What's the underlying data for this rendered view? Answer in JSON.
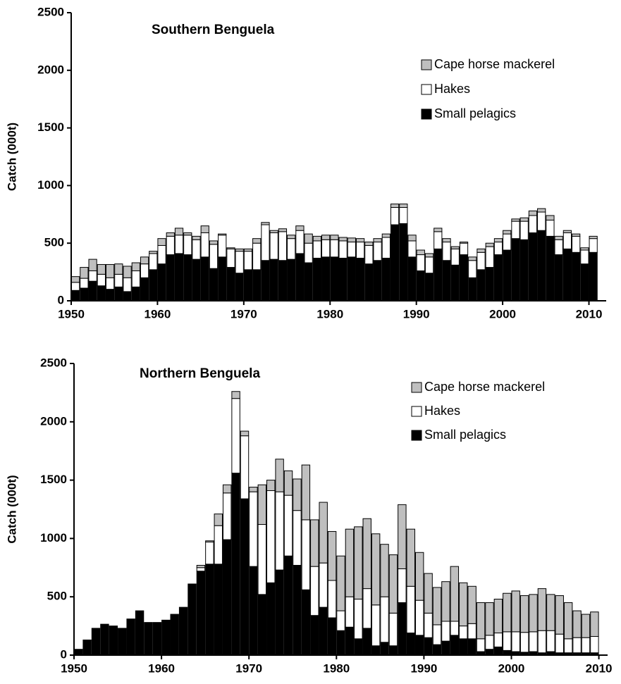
{
  "chart_data": [
    {
      "type": "bar",
      "stacked": true,
      "title": "Southern Benguela",
      "y_label": "Catch (000t)",
      "x": [
        1950,
        1951,
        1952,
        1953,
        1954,
        1955,
        1956,
        1957,
        1958,
        1959,
        1960,
        1961,
        1962,
        1963,
        1964,
        1965,
        1966,
        1967,
        1968,
        1969,
        1970,
        1971,
        1972,
        1973,
        1974,
        1975,
        1976,
        1977,
        1978,
        1979,
        1980,
        1981,
        1982,
        1983,
        1984,
        1985,
        1986,
        1987,
        1988,
        1989,
        1990,
        1991,
        1992,
        1993,
        1994,
        1995,
        1996,
        1997,
        1998,
        1999,
        2000,
        2001,
        2002,
        2003,
        2004,
        2005,
        2006,
        2007,
        2008,
        2009,
        2010
      ],
      "xlim": [
        1950,
        2012
      ],
      "xticks": [
        1950,
        1960,
        1970,
        1980,
        1990,
        2000,
        2010
      ],
      "ylim": [
        0,
        2500
      ],
      "yticks": [
        0,
        500,
        1000,
        1500,
        2000,
        2500
      ],
      "series": [
        {
          "name": "Small pelagics",
          "color": "#000000",
          "values": [
            90,
            110,
            170,
            130,
            100,
            120,
            80,
            120,
            200,
            270,
            320,
            400,
            410,
            400,
            360,
            380,
            280,
            380,
            290,
            240,
            270,
            270,
            350,
            360,
            350,
            360,
            410,
            330,
            370,
            380,
            380,
            370,
            380,
            370,
            320,
            350,
            370,
            660,
            670,
            380,
            260,
            240,
            450,
            350,
            310,
            400,
            200,
            270,
            290,
            400,
            440,
            540,
            530,
            590,
            610,
            560,
            400,
            450,
            420,
            320,
            420
          ]
        },
        {
          "name": "Hakes",
          "color": "#ffffff",
          "values": [
            70,
            85,
            90,
            100,
            100,
            110,
            120,
            140,
            120,
            140,
            160,
            160,
            160,
            170,
            170,
            210,
            210,
            190,
            160,
            190,
            160,
            230,
            310,
            230,
            250,
            180,
            200,
            170,
            150,
            150,
            150,
            150,
            130,
            140,
            160,
            160,
            180,
            150,
            140,
            140,
            140,
            140,
            150,
            160,
            140,
            100,
            150,
            150,
            180,
            110,
            140,
            150,
            160,
            150,
            160,
            140,
            130,
            140,
            140,
            120,
            120
          ]
        },
        {
          "name": "Cape horse mackerel",
          "color": "#bfbfbf",
          "values": [
            50,
            95,
            100,
            85,
            115,
            90,
            100,
            70,
            60,
            20,
            60,
            30,
            60,
            20,
            30,
            60,
            30,
            10,
            10,
            20,
            20,
            40,
            20,
            20,
            25,
            30,
            40,
            80,
            40,
            40,
            40,
            30,
            35,
            30,
            30,
            30,
            30,
            30,
            30,
            50,
            40,
            30,
            30,
            30,
            20,
            10,
            30,
            30,
            30,
            30,
            30,
            20,
            30,
            40,
            30,
            40,
            30,
            20,
            20,
            20,
            20
          ]
        }
      ],
      "legend": "upper right"
    },
    {
      "type": "bar",
      "stacked": true,
      "title": "Northern Benguela",
      "y_label": "Catch (000t)",
      "x": [
        1950,
        1951,
        1952,
        1953,
        1954,
        1955,
        1956,
        1957,
        1958,
        1959,
        1960,
        1961,
        1962,
        1963,
        1964,
        1965,
        1966,
        1967,
        1968,
        1969,
        1970,
        1971,
        1972,
        1973,
        1974,
        1975,
        1976,
        1977,
        1978,
        1979,
        1980,
        1981,
        1982,
        1983,
        1984,
        1985,
        1986,
        1987,
        1988,
        1989,
        1990,
        1991,
        1992,
        1993,
        1994,
        1995,
        1996,
        1997,
        1998,
        1999,
        2000,
        2001,
        2002,
        2003,
        2004,
        2005,
        2006,
        2007,
        2008,
        2009
      ],
      "xlim": [
        1950,
        2011
      ],
      "xticks": [
        1950,
        1960,
        1970,
        1980,
        1990,
        2000,
        2010
      ],
      "ylim": [
        0,
        2500
      ],
      "yticks": [
        0,
        500,
        1000,
        1500,
        2000,
        2500
      ],
      "series": [
        {
          "name": "Small pelagics",
          "color": "#000000",
          "values": [
            50,
            130,
            230,
            265,
            250,
            230,
            310,
            380,
            280,
            280,
            300,
            350,
            410,
            610,
            720,
            780,
            780,
            990,
            1560,
            1340,
            760,
            520,
            620,
            730,
            850,
            770,
            560,
            340,
            410,
            320,
            210,
            240,
            140,
            230,
            80,
            110,
            80,
            450,
            190,
            170,
            150,
            90,
            120,
            170,
            140,
            140,
            30,
            50,
            70,
            40,
            30,
            25,
            30,
            20,
            30,
            20,
            20,
            20,
            20,
            20
          ]
        },
        {
          "name": "Hakes",
          "color": "#ffffff",
          "values": [
            0,
            0,
            0,
            0,
            0,
            0,
            0,
            0,
            0,
            0,
            0,
            0,
            0,
            0,
            30,
            190,
            330,
            400,
            640,
            540,
            640,
            600,
            790,
            670,
            520,
            470,
            600,
            420,
            380,
            320,
            170,
            260,
            340,
            340,
            350,
            390,
            280,
            290,
            400,
            300,
            210,
            170,
            170,
            120,
            110,
            130,
            110,
            120,
            120,
            160,
            170,
            170,
            170,
            190,
            180,
            160,
            120,
            130,
            130,
            140
          ]
        },
        {
          "name": "Cape horse mackerel",
          "color": "#bfbfbf",
          "values": [
            0,
            0,
            0,
            0,
            0,
            0,
            0,
            0,
            0,
            0,
            0,
            0,
            0,
            0,
            20,
            10,
            100,
            70,
            60,
            40,
            40,
            340,
            90,
            280,
            210,
            270,
            470,
            400,
            520,
            420,
            470,
            580,
            620,
            600,
            610,
            450,
            500,
            550,
            490,
            410,
            340,
            320,
            340,
            470,
            370,
            320,
            310,
            280,
            290,
            330,
            350,
            315,
            320,
            360,
            310,
            330,
            310,
            230,
            200,
            210
          ]
        }
      ],
      "legend": "upper right"
    }
  ]
}
